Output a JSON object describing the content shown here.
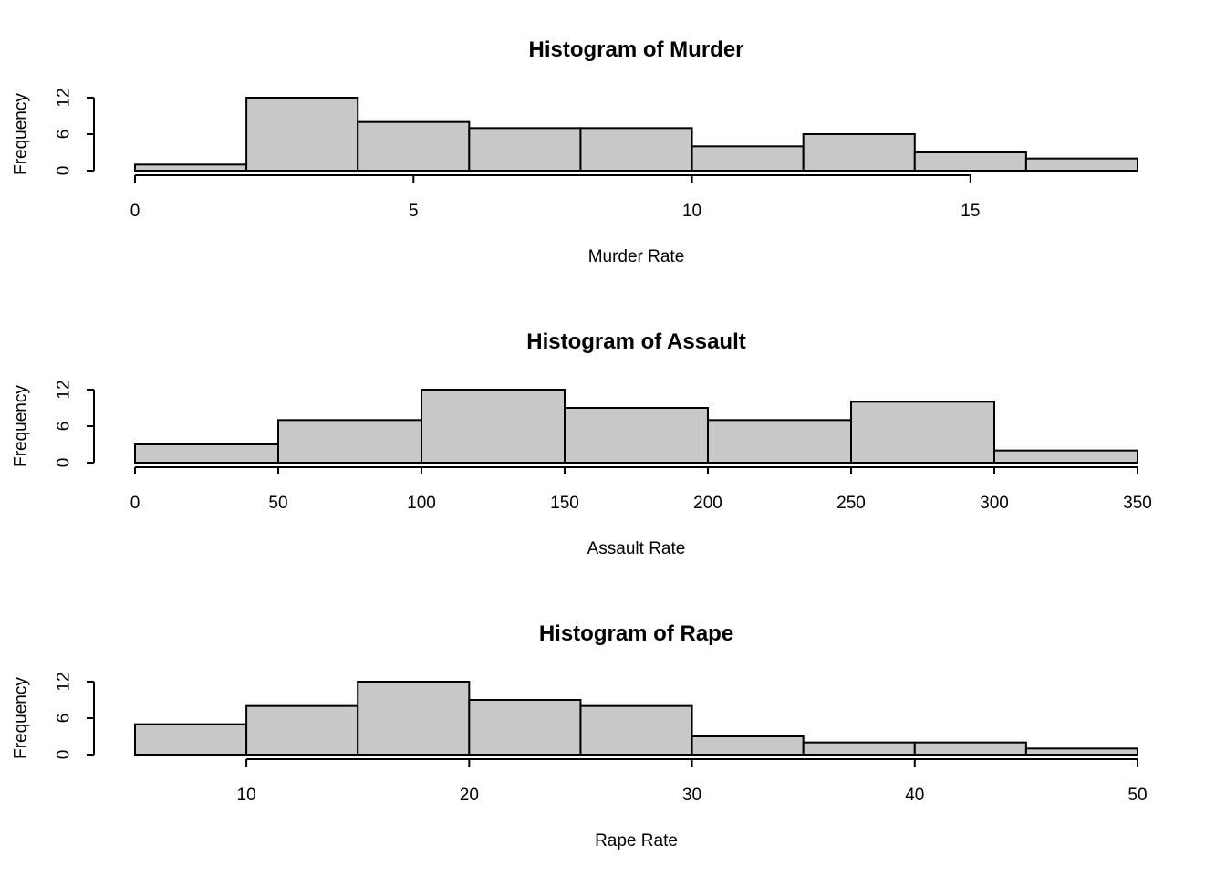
{
  "chart_data": [
    {
      "type": "bar",
      "title": "Histogram of Murder",
      "xlabel": "Murder Rate",
      "ylabel": "Frequency",
      "bin_edges": [
        0,
        2,
        4,
        6,
        8,
        10,
        12,
        14,
        16,
        18
      ],
      "values": [
        1,
        12,
        8,
        7,
        7,
        4,
        6,
        3,
        2
      ],
      "xticks": [
        0,
        5,
        10,
        15
      ],
      "xtick_labels": [
        "0",
        "5",
        "10",
        "15"
      ],
      "yticks": [
        0,
        6,
        12
      ],
      "ytick_labels": [
        "0",
        "6",
        "12"
      ],
      "xlim": [
        0,
        18
      ],
      "ylim": [
        0,
        12
      ],
      "bar_color": "#c8c8c8",
      "grid": false
    },
    {
      "type": "bar",
      "title": "Histogram of Assault",
      "xlabel": "Assault Rate",
      "ylabel": "Frequency",
      "bin_edges": [
        0,
        50,
        100,
        150,
        200,
        250,
        300,
        350
      ],
      "values": [
        3,
        7,
        12,
        9,
        7,
        10,
        2
      ],
      "xticks": [
        0,
        50,
        100,
        150,
        200,
        250,
        300,
        350
      ],
      "xtick_labels": [
        "0",
        "50",
        "100",
        "150",
        "200",
        "250",
        "300",
        "350"
      ],
      "yticks": [
        0,
        6,
        12
      ],
      "ytick_labels": [
        "0",
        "6",
        "12"
      ],
      "xlim": [
        0,
        350
      ],
      "ylim": [
        0,
        12
      ],
      "bar_color": "#c8c8c8",
      "grid": false
    },
    {
      "type": "bar",
      "title": "Histogram of Rape",
      "xlabel": "Rape Rate",
      "ylabel": "Frequency",
      "bin_edges": [
        5,
        10,
        15,
        20,
        25,
        30,
        35,
        40,
        45,
        50
      ],
      "values": [
        5,
        8,
        12,
        9,
        8,
        3,
        2,
        2,
        1
      ],
      "xticks": [
        10,
        20,
        30,
        40,
        50
      ],
      "xtick_labels": [
        "10",
        "20",
        "30",
        "40",
        "50"
      ],
      "yticks": [
        0,
        6,
        12
      ],
      "ytick_labels": [
        "0",
        "6",
        "12"
      ],
      "xlim": [
        5,
        50
      ],
      "ylim": [
        0,
        12
      ],
      "bar_color": "#c8c8c8",
      "grid": false
    }
  ]
}
